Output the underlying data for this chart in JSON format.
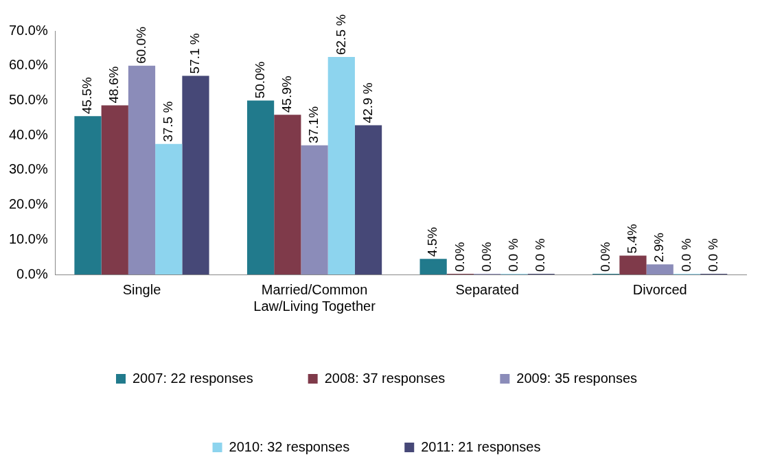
{
  "chart_data": {
    "type": "bar",
    "categories": [
      "Single",
      "Married/Common Law/Living Together",
      "Separated",
      "Divorced"
    ],
    "series": [
      {
        "name": "2007: 22 responses",
        "color": "#217a8c",
        "values": [
          45.5,
          50.0,
          4.5,
          0.0
        ],
        "value_labels": [
          "45.5%",
          "50.0%",
          "4.5%",
          "0.0%"
        ]
      },
      {
        "name": "2008: 37 responses",
        "color": "#7f3a4a",
        "values": [
          48.6,
          45.9,
          0.0,
          5.4
        ],
        "value_labels": [
          "48.6%",
          "45.9%",
          "0.0%",
          "5.4%"
        ]
      },
      {
        "name": "2009: 35 responses",
        "color": "#8b8cb9",
        "values": [
          60.0,
          37.1,
          0.0,
          2.9
        ],
        "value_labels": [
          "60.0%",
          "37.1%",
          "0.0%",
          "2.9%"
        ]
      },
      {
        "name": "2010: 32 responses",
        "color": "#8dd4ee",
        "values": [
          37.5,
          62.5,
          0.0,
          0.0
        ],
        "value_labels": [
          "37.5 %",
          "62.5 %",
          "0.0 %",
          "0.0 %"
        ]
      },
      {
        "name": "2011: 21 responses",
        "color": "#464877",
        "values": [
          57.1,
          42.9,
          0.0,
          0.0
        ],
        "value_labels": [
          "57.1 %",
          "42.9 %",
          "0.0 %",
          "0.0 %"
        ]
      }
    ],
    "ylim": [
      0,
      70
    ],
    "yticks": [
      {
        "value": 0,
        "label": "0.0%"
      },
      {
        "value": 10,
        "label": "10.0%"
      },
      {
        "value": 20,
        "label": "20.0%"
      },
      {
        "value": 30,
        "label": "30.0%"
      },
      {
        "value": 40,
        "label": "40.0%"
      },
      {
        "value": 50,
        "label": "50.0%"
      },
      {
        "value": 60,
        "label": "60.0%"
      },
      {
        "value": 70,
        "label": "70.0%"
      }
    ],
    "grid": false,
    "legend": "bottom"
  }
}
